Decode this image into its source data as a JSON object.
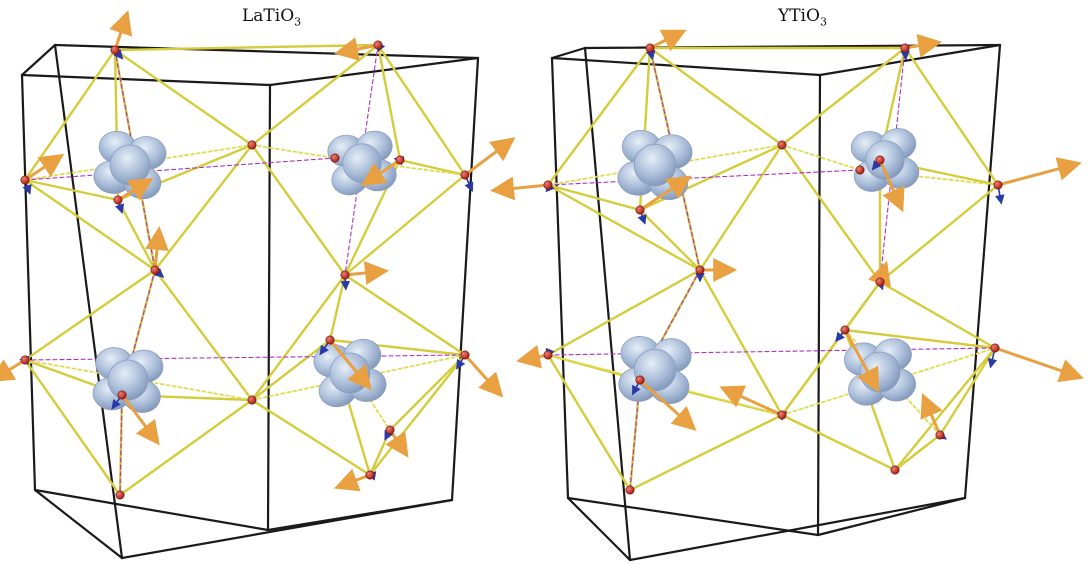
{
  "panels": [
    {
      "title_main": "LaTiO",
      "title_sub": "3"
    },
    {
      "title_main": "YTiO",
      "title_sub": "3"
    }
  ],
  "colors": {
    "cell_edge": "#1a1a1a",
    "bond": "#d4cc3a",
    "bond_dashed": "#e0dc50",
    "magenta_bond": "#b030c0",
    "atom": "#c0201a",
    "arrow_orange": "#e8a040",
    "arrow_blue": "#2a3aa8",
    "orbital": "#a8bcd8"
  },
  "arrow_scale": {
    "LaTiO3": "short",
    "YTiO3": "long"
  }
}
